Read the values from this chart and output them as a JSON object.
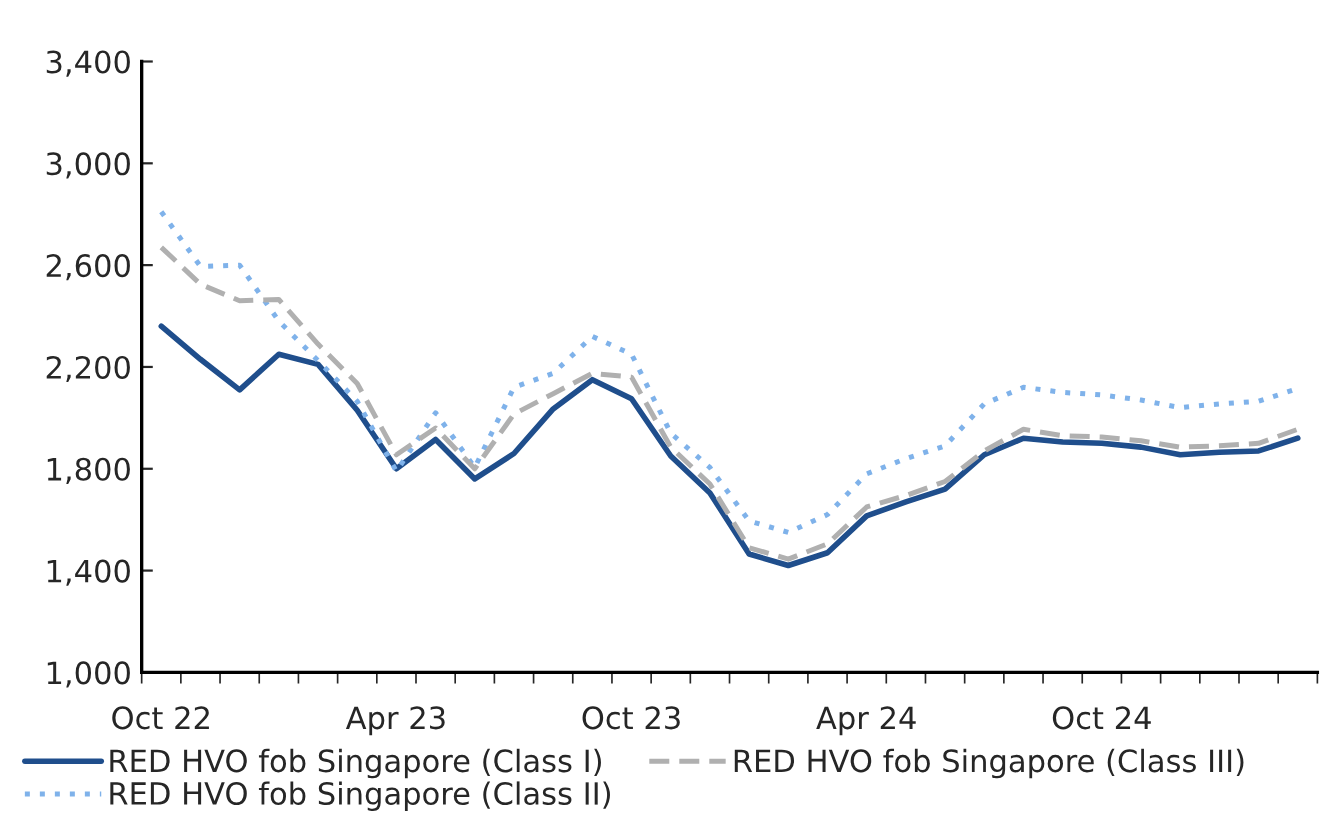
{
  "chart_data": {
    "type": "line",
    "categories": [
      "Oct 22",
      null,
      null,
      null,
      null,
      null,
      "Apr 23",
      null,
      null,
      null,
      null,
      null,
      "Oct 23",
      null,
      null,
      null,
      null,
      null,
      "Apr 24",
      null,
      null,
      null,
      null,
      null,
      "Oct 24",
      null,
      null,
      null,
      null,
      null
    ],
    "series": [
      {
        "name": "RED HVO fob Singapore (Class I)",
        "color": "#1f4e8c",
        "line_style": "solid",
        "values": [
          2360,
          2230,
          2110,
          2250,
          2210,
          2030,
          1800,
          1915,
          1760,
          1860,
          2035,
          2150,
          2075,
          1850,
          1705,
          1465,
          1420,
          1470,
          1615,
          1670,
          1720,
          1855,
          1920,
          1905,
          1900,
          1885,
          1855,
          1865,
          1870,
          1920
        ]
      },
      {
        "name": "RED HVO fob Singapore (Class II)",
        "color": "#7fb2ea",
        "line_style": "dotted",
        "values": [
          2810,
          2595,
          2600,
          2380,
          2225,
          2065,
          1790,
          2020,
          1805,
          2120,
          2175,
          2320,
          2250,
          1940,
          1805,
          1595,
          1550,
          1620,
          1780,
          1840,
          1890,
          2055,
          2120,
          2100,
          2090,
          2070,
          2040,
          2055,
          2065,
          2115
        ]
      },
      {
        "name": "RED HVO fob Singapore (Class III)",
        "color": "#b0b0b0",
        "line_style": "dashed",
        "values": [
          2670,
          2525,
          2460,
          2465,
          2290,
          2135,
          1855,
          1960,
          1800,
          2015,
          2095,
          2175,
          2160,
          1885,
          1740,
          1490,
          1445,
          1505,
          1650,
          1695,
          1750,
          1870,
          1955,
          1930,
          1925,
          1910,
          1885,
          1890,
          1900,
          1955
        ]
      }
    ],
    "ylim": [
      1000,
      3400
    ],
    "yticks": [
      {
        "value": 1000,
        "label": "1,000"
      },
      {
        "value": 1400,
        "label": "1,400"
      },
      {
        "value": 1800,
        "label": "1,800"
      },
      {
        "value": 2200,
        "label": "2,200"
      },
      {
        "value": 2600,
        "label": "2,600"
      },
      {
        "value": 3000,
        "label": "3,000"
      },
      {
        "value": 3400,
        "label": "3,400"
      }
    ],
    "grid": false,
    "legend": "bottom",
    "marker": "none"
  }
}
